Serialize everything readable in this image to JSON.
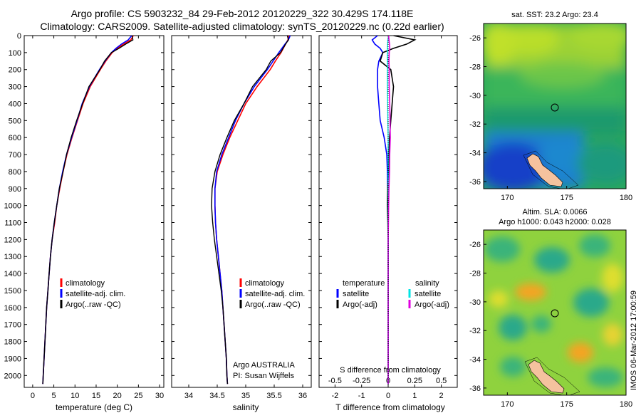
{
  "header": {
    "line1": "Argo profile: CS 5903232_84 29-Feb-2012 20120229_322 30.429S 174.118E",
    "line2": "Climatology: CARS2009. Satellite-adjusted climatology: synTS_20120229.nc (0.22d earlier)"
  },
  "panels": {
    "temp": {
      "xlabel": "temperature (deg C)",
      "legend": [
        "climatology",
        "satellite-adj. clim.",
        "Argo(..raw -QC)"
      ]
    },
    "sal": {
      "xlabel": "salinity",
      "legend": [
        "climatology",
        "satellite-adj. clim.",
        "Argo(..raw -QC)"
      ],
      "note1": "Argo AUSTRALIA",
      "note2": "PI: Susan Wijffels"
    },
    "diff": {
      "xlabel": "T difference from climatology",
      "top_label": "S difference from climatology",
      "legend_head_t": "temperature",
      "legend_head_s": "salinity",
      "legend_t": [
        "satellite",
        "Argo(-adj)"
      ],
      "legend_s": [
        "satellite",
        "Argo(-adj)"
      ]
    },
    "map_sst": {
      "title": "sat. SST: 23.2 Argo: 23.4"
    },
    "map_sla": {
      "title1": "Altim. SLA: 0.0066",
      "title2": "Argo h1000: 0.043 h2000: 0.028"
    },
    "credit": "IMOS 06-Mar-2012 17:00:59"
  },
  "colors": {
    "climatology": "#ff0000",
    "satellite": "#0000ff",
    "argo": "#000000",
    "s_sat": "#00e5e5",
    "s_argo": "#e000e0"
  },
  "chart_data": [
    {
      "type": "line",
      "xlabel": "temperature (deg C)",
      "xlim": [
        -2,
        31
      ],
      "ylim": [
        2070,
        0
      ],
      "xticks": [
        0,
        5,
        10,
        15,
        20,
        25,
        30
      ],
      "yticks": [
        0,
        100,
        200,
        300,
        400,
        500,
        600,
        700,
        800,
        900,
        1000,
        1100,
        1200,
        1300,
        1400,
        1500,
        1600,
        1700,
        1800,
        1900,
        2000
      ],
      "depth": [
        0,
        25,
        50,
        75,
        100,
        150,
        200,
        300,
        400,
        500,
        600,
        700,
        800,
        900,
        1000,
        1100,
        1200,
        1300,
        1400,
        1500,
        1600,
        1700,
        1800,
        1900,
        2000,
        2050
      ],
      "series": [
        {
          "name": "climatology",
          "values": [
            23.8,
            23.2,
            21.5,
            20.0,
            18.8,
            17.3,
            16.0,
            13.6,
            11.9,
            10.6,
            9.3,
            8.1,
            7.2,
            6.4,
            5.7,
            5.2,
            4.6,
            4.2,
            3.9,
            3.6,
            3.3,
            3.1,
            2.9,
            2.7,
            2.5,
            2.4
          ]
        },
        {
          "name": "satellite-adj. clim.",
          "values": [
            23.4,
            22.6,
            21.0,
            19.7,
            18.6,
            17.1,
            15.8,
            13.4,
            11.7,
            10.5,
            9.2,
            8.0,
            7.1,
            6.3,
            5.7,
            5.1,
            4.6,
            4.2,
            3.9,
            3.6,
            3.3,
            3.1,
            2.9,
            2.7,
            2.5,
            2.4
          ]
        },
        {
          "name": "Argo(..raw -QC)",
          "values": [
            23.5,
            23.7,
            22.0,
            20.4,
            18.6,
            17.0,
            15.9,
            13.3,
            11.8,
            10.4,
            9.1,
            8.0,
            7.2,
            6.3,
            5.7,
            5.1,
            4.6,
            4.2,
            3.9,
            3.6,
            3.3,
            3.1,
            2.9,
            2.7,
            2.5,
            2.4
          ]
        }
      ]
    },
    {
      "type": "line",
      "xlabel": "salinity",
      "xlim": [
        33.7,
        36.15
      ],
      "ylim": [
        2070,
        0
      ],
      "xticks": [
        34,
        34.5,
        35,
        35.5,
        36
      ],
      "depth": [
        0,
        25,
        50,
        100,
        150,
        200,
        300,
        400,
        500,
        600,
        700,
        800,
        900,
        1000,
        1100,
        1200,
        1300,
        1400,
        1500,
        1600,
        1700,
        1800,
        1900,
        2000,
        2050
      ],
      "series": [
        {
          "name": "climatology",
          "values": [
            35.76,
            35.74,
            35.7,
            35.62,
            35.52,
            35.43,
            35.2,
            35.0,
            34.86,
            34.72,
            34.6,
            34.5,
            34.46,
            34.46,
            34.47,
            34.49,
            34.52,
            34.55,
            34.58,
            34.6,
            34.62,
            34.64,
            34.66,
            34.67,
            34.68
          ]
        },
        {
          "name": "satellite-adj. clim.",
          "values": [
            35.78,
            35.75,
            35.69,
            35.58,
            35.48,
            35.38,
            35.15,
            34.97,
            34.82,
            34.7,
            34.58,
            34.49,
            34.46,
            34.46,
            34.47,
            34.49,
            34.52,
            34.55,
            34.58,
            34.6,
            34.62,
            34.64,
            34.66,
            34.67,
            34.68
          ]
        },
        {
          "name": "Argo(..raw -QC)",
          "values": [
            35.73,
            35.75,
            35.7,
            35.61,
            35.44,
            35.36,
            35.12,
            34.97,
            34.8,
            34.67,
            34.55,
            34.46,
            34.41,
            34.4,
            34.42,
            34.45,
            34.49,
            34.53,
            34.57,
            34.6,
            34.62,
            34.64,
            34.66,
            34.67,
            34.68
          ]
        }
      ]
    },
    {
      "type": "line",
      "xlabel": "T difference from climatology",
      "xlim": [
        -2.6,
        2.6
      ],
      "ylim": [
        2070,
        0
      ],
      "xticks": [
        -2,
        -1,
        0,
        1,
        2
      ],
      "xticks_top": [
        -0.5,
        -0.25,
        0,
        0.25,
        0.5
      ],
      "depth": [
        0,
        25,
        50,
        75,
        100,
        150,
        200,
        300,
        400,
        500,
        600,
        700,
        800,
        900,
        1000,
        1100,
        1200,
        1300,
        1400,
        1500,
        1600,
        1700,
        1800,
        1900,
        2000,
        2050
      ],
      "series": [
        {
          "name": "temperature satellite",
          "values": [
            -0.4,
            -0.6,
            -0.5,
            -0.3,
            -0.2,
            -0.35,
            -0.4,
            -0.4,
            -0.35,
            -0.3,
            -0.15,
            -0.05,
            -0.03,
            -0.02,
            -0.01,
            0,
            0,
            0,
            0,
            0,
            0,
            0,
            0,
            0,
            0,
            0
          ]
        },
        {
          "name": "temperature Argo(-adj)",
          "values": [
            0.2,
            1.0,
            0.7,
            0.2,
            -0.2,
            -0.3,
            0.1,
            0.2,
            0.15,
            0.1,
            0.05,
            0.03,
            0.02,
            -0.02,
            -0.03,
            -0.01,
            0,
            0,
            0,
            0,
            0,
            0,
            0,
            0,
            0,
            0
          ]
        },
        {
          "name": "salinity satellite",
          "values": [
            0.02,
            -0.01,
            -0.02,
            -0.03,
            -0.03,
            -0.03,
            -0.03,
            -0.03,
            -0.02,
            -0.01,
            0,
            0,
            0,
            0,
            0,
            0,
            0,
            0,
            0,
            0,
            0,
            0,
            0,
            0,
            0,
            0
          ]
        },
        {
          "name": "salinity Argo(-adj)",
          "values": [
            0.02,
            0.03,
            0.05,
            0.06,
            0.04,
            0.03,
            0.04,
            0.04,
            0.06,
            0.07,
            0.08,
            0.06,
            0.05,
            0.03,
            0.02,
            0.01,
            0,
            0,
            0,
            0,
            0,
            0,
            0,
            0,
            0,
            0
          ]
        }
      ]
    },
    {
      "type": "heatmap",
      "title": "sat. SST: 23.2 Argo: 23.4",
      "xlim": [
        168,
        180
      ],
      "ylim": [
        -36.5,
        -25
      ],
      "xticks": [
        170,
        175,
        180
      ],
      "yticks": [
        -26,
        -28,
        -30,
        -32,
        -34,
        -36
      ],
      "argo_position": [
        174.118,
        -30.429
      ]
    },
    {
      "type": "heatmap",
      "title": "Altim. SLA: 0.0066",
      "subtitle": "Argo h1000: 0.043 h2000: 0.028",
      "xlim": [
        168,
        180
      ],
      "ylim": [
        -36.5,
        -25
      ],
      "xticks": [
        170,
        175,
        180
      ],
      "yticks": [
        -26,
        -28,
        -30,
        -32,
        -34,
        -36
      ],
      "argo_position": [
        174.118,
        -30.429
      ]
    }
  ]
}
